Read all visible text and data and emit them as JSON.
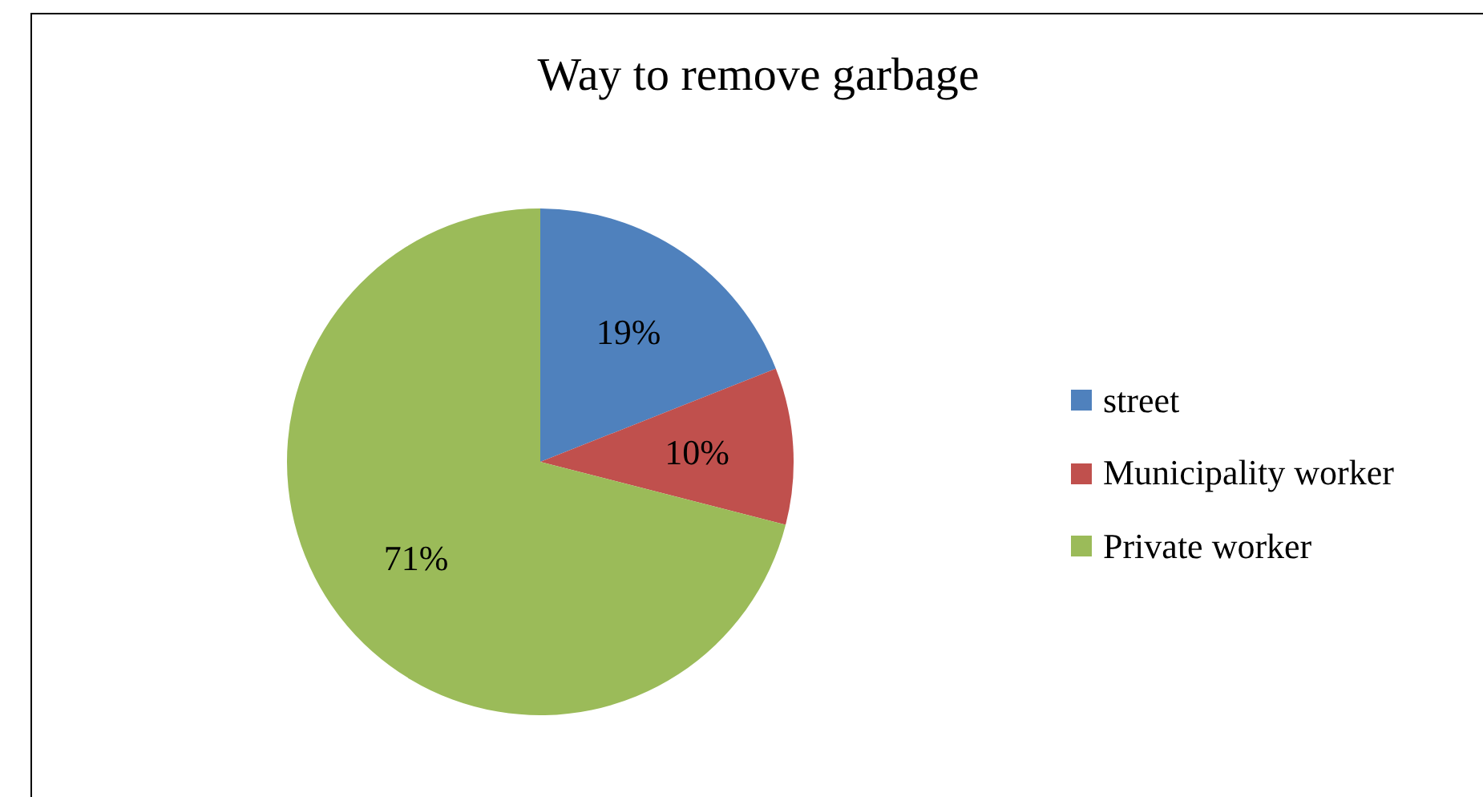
{
  "chart_data": {
    "type": "pie",
    "title": "Way to remove garbage",
    "categories": [
      "street",
      "Municipality worker",
      "Private worker"
    ],
    "values": [
      19,
      10,
      71
    ],
    "colors": [
      "#4f81bd",
      "#c0504d",
      "#9bbb59"
    ],
    "value_labels": [
      "19%",
      "10%",
      "71%"
    ],
    "legend": "right"
  }
}
